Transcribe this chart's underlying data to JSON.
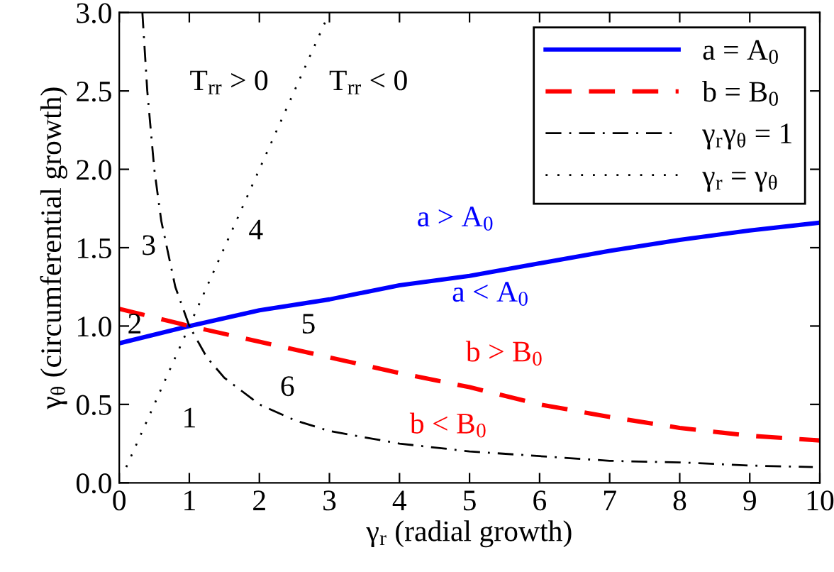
{
  "chart_data": {
    "type": "line",
    "xlabel": "γ$_{r}$ (radial growth)",
    "ylabel": "γ$_{θ}$ (circumferential growth)",
    "xlim": [
      0,
      10
    ],
    "xticks": [
      0,
      1,
      2,
      3,
      4,
      5,
      6,
      7,
      8,
      9,
      10
    ],
    "ylim": [
      0,
      3
    ],
    "yticks": [
      {
        "value": 0,
        "label": "0.0"
      },
      {
        "value": 0.5,
        "label": "0.5"
      },
      {
        "value": 1,
        "label": "1.0"
      },
      {
        "value": 1.5,
        "label": "1.5"
      },
      {
        "value": 2,
        "label": "2.0"
      },
      {
        "value": 2.5,
        "label": "2.5"
      },
      {
        "value": 3,
        "label": "3.0"
      }
    ],
    "grid": false,
    "legend": "top right",
    "series": [
      {
        "name": "a = A$_{0}$",
        "color": "#0000ff",
        "line_style": "solid",
        "x": [
          0,
          1,
          2,
          3,
          4,
          5,
          6,
          7,
          8,
          9,
          10
        ],
        "values": [
          0.89,
          1.0,
          1.1,
          1.17,
          1.26,
          1.32,
          1.4,
          1.48,
          1.55,
          1.61,
          1.66
        ]
      },
      {
        "name": "b = B$_{0}$",
        "color": "#ff0000",
        "line_style": "dashed",
        "x": [
          0,
          1,
          2,
          3,
          4,
          5,
          6,
          7,
          8,
          9,
          10
        ],
        "values": [
          1.11,
          1.0,
          0.9,
          0.8,
          0.7,
          0.61,
          0.5,
          0.42,
          0.35,
          0.3,
          0.27
        ]
      },
      {
        "name": "γ$_{r}$γ$_{θ}$ = 1",
        "color": "#000000",
        "line_style": "dashdot",
        "x": [
          0.33,
          0.4,
          0.5,
          0.6,
          0.8,
          1,
          1.25,
          1.5,
          2,
          2.5,
          3,
          4,
          5,
          6,
          7,
          8,
          9,
          9.9
        ],
        "values": [
          3.0,
          2.5,
          2.0,
          1.67,
          1.25,
          1.0,
          0.8,
          0.67,
          0.5,
          0.4,
          0.33,
          0.25,
          0.2,
          0.17,
          0.14,
          0.13,
          0.11,
          0.1
        ]
      },
      {
        "name": "γ$_{r}$ = γ$_{θ}$",
        "color": "#000000",
        "line_style": "dotted",
        "x": [
          0.1,
          2.95
        ],
        "values": [
          0.1,
          2.95
        ]
      }
    ],
    "annotations": [
      "T$_{rr}$ > 0",
      "T$_{rr}$ < 0",
      "a > A$_{0}$",
      "a < A$_{0}$",
      "b > B$_{0}$",
      "b < B$_{0}$",
      "1",
      "2",
      "3",
      "4",
      "5",
      "6"
    ]
  }
}
